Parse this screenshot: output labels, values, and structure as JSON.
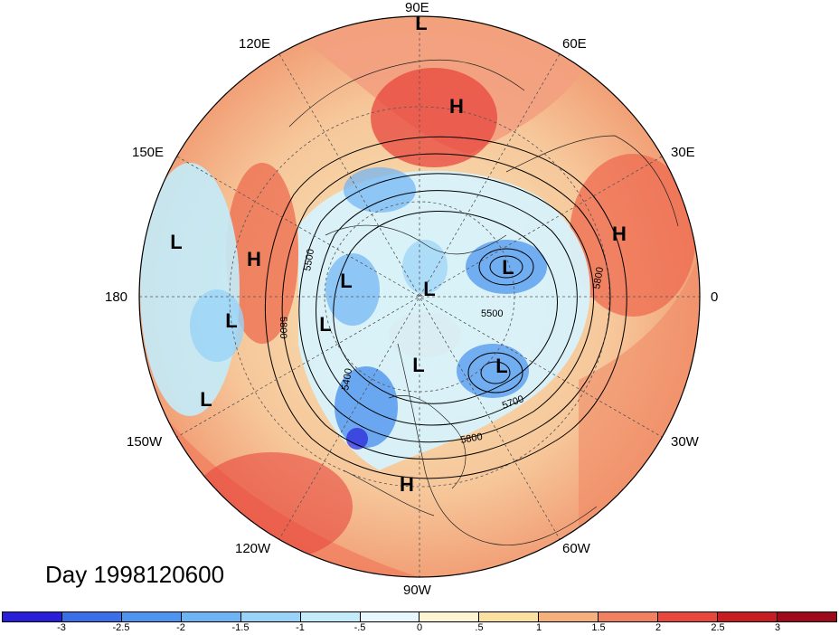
{
  "title": "Day 1998120600",
  "longitude_labels": {
    "n90e": "90E",
    "n60e": "60E",
    "n30e": "30E",
    "n0": "0",
    "n30w": "30W",
    "n60w": "60W",
    "n90w": "90W",
    "n120w": "120W",
    "n150w": "150W",
    "n180": "180",
    "n150e": "150E",
    "n120e": "120E"
  },
  "pressure_centers": [
    {
      "type": "L",
      "name": "low-top-90e"
    },
    {
      "type": "H",
      "name": "high-siberia"
    },
    {
      "type": "H",
      "name": "high-europe"
    },
    {
      "type": "L",
      "name": "low-pacific-west"
    },
    {
      "type": "H",
      "name": "high-pacific"
    },
    {
      "type": "L",
      "name": "low-canada-north"
    },
    {
      "type": "L",
      "name": "low-arctic"
    },
    {
      "type": "L",
      "name": "low-iceland"
    },
    {
      "type": "L",
      "name": "low-bering"
    },
    {
      "type": "L",
      "name": "low-alaska"
    },
    {
      "type": "L",
      "name": "low-hudson"
    },
    {
      "type": "L",
      "name": "low-labrador"
    },
    {
      "type": "L",
      "name": "low-pacific-south"
    },
    {
      "type": "H",
      "name": "high-gulf"
    }
  ],
  "contour_labels": [
    "5500",
    "5800",
    "5500",
    "5800",
    "5400",
    "5700",
    "5800"
  ],
  "colorbar": {
    "ticks": [
      "-3",
      "-2.5",
      "-2",
      "-1.5",
      "-1",
      "-.5",
      "0",
      ".5",
      "1",
      "1.5",
      "2",
      "2.5",
      "3"
    ],
    "colors": [
      "#2a1fd8",
      "#3a6fe8",
      "#4d95ef",
      "#6db4f5",
      "#9ad3f8",
      "#c3ecfb",
      "#e6f8fe",
      "#fdf5d2",
      "#fbe0a0",
      "#f6b07c",
      "#f08060",
      "#e8473e",
      "#c61d22",
      "#9e0a1a"
    ]
  }
}
